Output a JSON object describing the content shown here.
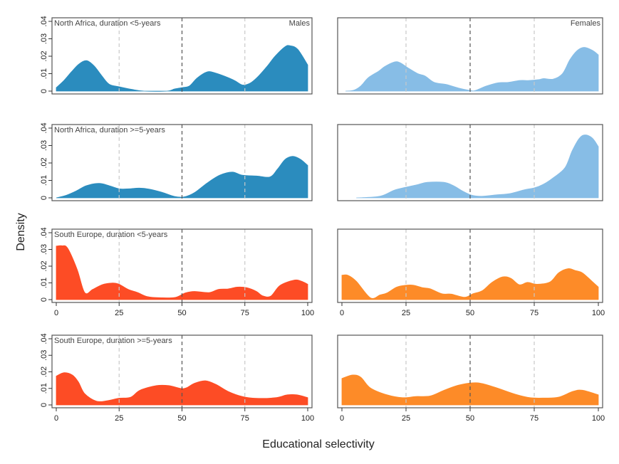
{
  "chart_data": {
    "type": "area",
    "title": "",
    "xlabel": "Educational selectivity",
    "ylabel": "Density",
    "xlim": [
      0,
      100
    ],
    "ylim": [
      0,
      0.04
    ],
    "grid": false,
    "xticks": {
      "values": [
        0,
        25,
        50,
        75,
        100
      ],
      "labels": [
        "0",
        "25",
        "50",
        "75",
        "100"
      ]
    },
    "yticks": {
      "values": [
        0,
        0.01,
        0.02,
        0.03,
        0.04
      ],
      "labels": [
        "0",
        ".01",
        ".02",
        ".03",
        ".04"
      ]
    },
    "reference_lines": [
      {
        "x": 25,
        "style": "dashed",
        "tone": "light"
      },
      {
        "x": 50,
        "style": "dashed",
        "tone": "dark"
      },
      {
        "x": 75,
        "style": "dashed",
        "tone": "light"
      }
    ],
    "column_labels": [
      "Males",
      "Females"
    ],
    "row_labels": [
      "North Africa, duration <5-years",
      "North Africa, duration >=5-years",
      "South Europe, duration <5-years",
      "South Europe, duration >=5-years"
    ],
    "colors": {
      "north_africa_males": "#2b8cbe",
      "north_africa_females": "#87bde6",
      "south_europe_males": "#fd4c25",
      "south_europe_females": "#fd8b28"
    },
    "panels": [
      {
        "row": 0,
        "col": 0,
        "region": "North Africa",
        "duration": "<5-years",
        "sex": "Males",
        "color_key": "north_africa_males",
        "x": [
          0,
          3,
          6,
          9,
          12,
          15,
          18,
          21,
          25,
          30,
          35,
          44,
          47,
          50,
          53,
          56,
          60,
          63,
          67,
          71,
          74,
          77,
          80,
          84,
          87,
          91,
          93,
          96,
          100
        ],
        "y": [
          0.002,
          0.006,
          0.011,
          0.0155,
          0.0175,
          0.0145,
          0.009,
          0.004,
          0.0025,
          0.001,
          0.0,
          0.0,
          0.0012,
          0.002,
          0.003,
          0.0075,
          0.011,
          0.0105,
          0.0085,
          0.006,
          0.0035,
          0.0045,
          0.008,
          0.0145,
          0.02,
          0.0255,
          0.026,
          0.024,
          0.015
        ]
      },
      {
        "row": 0,
        "col": 1,
        "region": "North Africa",
        "duration": "<5-years",
        "sex": "Females",
        "color_key": "north_africa_females",
        "x": [
          1.4,
          4.6,
          7.4,
          10.2,
          14.4,
          16.7,
          20.4,
          22.7,
          25.9,
          29.6,
          32.4,
          36,
          40.7,
          45.4,
          50,
          51.9,
          56.5,
          61,
          64.8,
          69.4,
          73,
          76.9,
          78.7,
          82.4,
          86,
          88.9,
          91.7,
          94.4,
          97.7,
          100
        ],
        "y": [
          0.0,
          0.0005,
          0.003,
          0.0076,
          0.0115,
          0.0141,
          0.0167,
          0.0163,
          0.0132,
          0.01,
          0.0087,
          0.005,
          0.0038,
          0.0018,
          0.0004,
          0.0003,
          0.003,
          0.0048,
          0.005,
          0.0061,
          0.0061,
          0.0066,
          0.0072,
          0.0069,
          0.01,
          0.018,
          0.0232,
          0.0251,
          0.0234,
          0.0208
        ]
      },
      {
        "row": 1,
        "col": 0,
        "region": "North Africa",
        "duration": ">=5-years",
        "sex": "Males",
        "color_key": "north_africa_males",
        "x": [
          0,
          4,
          8,
          12,
          17,
          21,
          25,
          29,
          33,
          37,
          42,
          47,
          51,
          55,
          60,
          65,
          70,
          74,
          80,
          85,
          88,
          91,
          94,
          97,
          100
        ],
        "y": [
          0.0,
          0.0015,
          0.004,
          0.007,
          0.0083,
          0.007,
          0.0052,
          0.0052,
          0.0056,
          0.005,
          0.0032,
          0.0008,
          0.0006,
          0.003,
          0.0085,
          0.013,
          0.0148,
          0.013,
          0.0125,
          0.012,
          0.0165,
          0.022,
          0.0238,
          0.0222,
          0.0186
        ]
      },
      {
        "row": 1,
        "col": 1,
        "region": "North Africa",
        "duration": ">=5-years",
        "sex": "Females",
        "color_key": "north_africa_females",
        "x": [
          5.6,
          14.8,
          20.4,
          25,
          29.6,
          33.3,
          39.8,
          43.5,
          47.2,
          50.9,
          54.6,
          60.2,
          65.7,
          71.3,
          75,
          78.7,
          82.4,
          87,
          89.8,
          92.6,
          94.9,
          97.7,
          100
        ],
        "y": [
          0.0,
          0.0009,
          0.0044,
          0.0061,
          0.0076,
          0.0089,
          0.0089,
          0.007,
          0.0038,
          0.0014,
          0.0009,
          0.0017,
          0.0025,
          0.0047,
          0.0057,
          0.0079,
          0.0115,
          0.0173,
          0.027,
          0.0342,
          0.0361,
          0.0342,
          0.0294
        ]
      },
      {
        "row": 2,
        "col": 0,
        "region": "South Europe",
        "duration": "<5-years",
        "sex": "Males",
        "color_key": "south_europe_males",
        "x": [
          0,
          2.2,
          4.5,
          8.3,
          11.3,
          14.5,
          18.2,
          22,
          24.8,
          28.6,
          32.4,
          36.2,
          41.8,
          47.5,
          51.3,
          55,
          60.7,
          64.5,
          68.3,
          72,
          75.8,
          79.6,
          82,
          85.3,
          89,
          94.7,
          97.5,
          100
        ],
        "y": [
          0.032,
          0.0322,
          0.0308,
          0.0181,
          0.0042,
          0.0061,
          0.0089,
          0.0099,
          0.0093,
          0.0061,
          0.0042,
          0.0018,
          0.0011,
          0.0014,
          0.004,
          0.0049,
          0.0042,
          0.0061,
          0.0064,
          0.0075,
          0.0071,
          0.0049,
          0.0023,
          0.0021,
          0.0085,
          0.0117,
          0.011,
          0.0092
        ]
      },
      {
        "row": 2,
        "col": 1,
        "region": "South Europe",
        "duration": "<5-years",
        "sex": "Females",
        "color_key": "south_europe_females",
        "x": [
          0,
          2.3,
          5.6,
          11.1,
          14.9,
          17.6,
          21.4,
          25,
          27.9,
          31.6,
          34.4,
          39,
          42.7,
          47.8,
          51.1,
          54.8,
          58.5,
          62.7,
          65.9,
          69.2,
          72.4,
          76.1,
          81.2,
          84.5,
          88.2,
          91,
          93.8,
          97.5,
          100
        ],
        "y": [
          0.0146,
          0.0146,
          0.011,
          0.0011,
          0.0028,
          0.004,
          0.0075,
          0.0086,
          0.0086,
          0.0071,
          0.0065,
          0.0035,
          0.0033,
          0.0014,
          0.0035,
          0.0054,
          0.0103,
          0.0136,
          0.0127,
          0.0089,
          0.0103,
          0.0092,
          0.0106,
          0.016,
          0.0185,
          0.0174,
          0.016,
          0.011,
          0.0075
        ]
      },
      {
        "row": 3,
        "col": 0,
        "region": "South Europe",
        "duration": ">=5-years",
        "sex": "Males",
        "color_key": "south_europe_males",
        "x": [
          0,
          3.1,
          6.4,
          8.8,
          11.3,
          15.9,
          20.1,
          24.8,
          29.6,
          33.3,
          39.9,
          44.7,
          49.4,
          51.7,
          55,
          59.3,
          63.5,
          68.3,
          74,
          79.6,
          87.2,
          91.9,
          95.7,
          100
        ],
        "y": [
          0.0174,
          0.0195,
          0.0181,
          0.0139,
          0.0068,
          0.0023,
          0.0025,
          0.004,
          0.0047,
          0.0089,
          0.0117,
          0.0117,
          0.01,
          0.0103,
          0.0131,
          0.0146,
          0.0124,
          0.0082,
          0.0051,
          0.004,
          0.0044,
          0.0061,
          0.0061,
          0.0044
        ]
      },
      {
        "row": 3,
        "col": 1,
        "region": "South Europe",
        "duration": ">=5-years",
        "sex": "Females",
        "color_key": "south_europe_females",
        "x": [
          0,
          4.2,
          7.4,
          11.1,
          17.6,
          23.7,
          28.8,
          34.4,
          39.9,
          45.5,
          51.1,
          54.8,
          60.4,
          67.8,
          73.4,
          78.9,
          84.5,
          90.1,
          93.8,
          100
        ],
        "y": [
          0.016,
          0.0181,
          0.0167,
          0.0103,
          0.0061,
          0.0044,
          0.0051,
          0.0054,
          0.0089,
          0.012,
          0.0134,
          0.0129,
          0.0103,
          0.0064,
          0.0044,
          0.0042,
          0.0047,
          0.0082,
          0.0089,
          0.0061
        ]
      }
    ]
  }
}
